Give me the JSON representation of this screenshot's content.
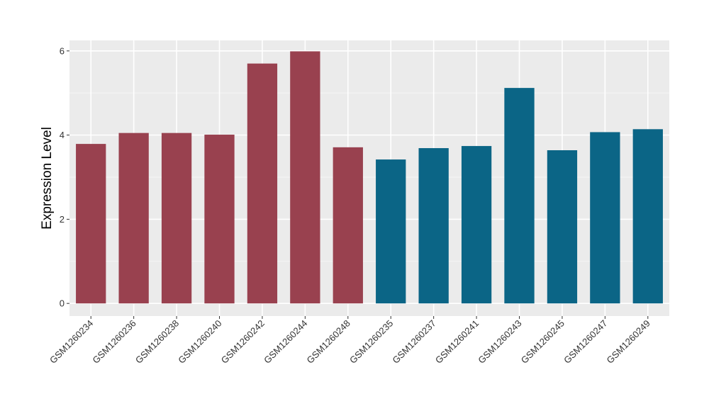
{
  "colors": {
    "panel_background": "#ebebeb",
    "grid_major": "#ffffff",
    "grid_minor": "#f5f5f5",
    "group_a": "#99414f",
    "group_b": "#0b6586",
    "tick": "#333333"
  },
  "chart_data": {
    "type": "bar",
    "title": "",
    "xlabel": "",
    "ylabel": "Expression Level",
    "ylim": [
      -0.3,
      6.25
    ],
    "y_ticks": [
      0,
      2,
      4,
      6
    ],
    "grid": true,
    "legend": "none",
    "categories": [
      "GSM1260234",
      "GSM1260236",
      "GSM1260238",
      "GSM1260240",
      "GSM1260242",
      "GSM1260244",
      "GSM1260248",
      "GSM1260235",
      "GSM1260237",
      "GSM1260241",
      "GSM1260243",
      "GSM1260245",
      "GSM1260247",
      "GSM1260249"
    ],
    "values": [
      3.79,
      4.05,
      4.05,
      4.01,
      5.7,
      5.99,
      3.71,
      3.42,
      3.69,
      3.74,
      5.12,
      3.64,
      4.07,
      4.14
    ],
    "group_index": [
      0,
      0,
      0,
      0,
      0,
      0,
      0,
      1,
      1,
      1,
      1,
      1,
      1,
      1
    ]
  }
}
